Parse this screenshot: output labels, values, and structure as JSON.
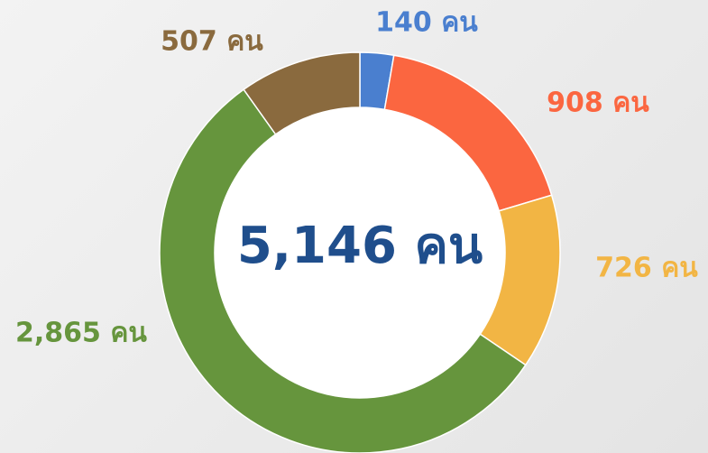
{
  "chart_data": {
    "type": "donut",
    "categories": [
      null,
      null,
      null,
      null,
      null
    ],
    "values": [
      140,
      908,
      726,
      2865,
      507
    ],
    "value_labels": [
      "140 คน",
      "908 คน",
      "726 คน",
      "2,865 คน",
      "507 คน"
    ],
    "colors": [
      "#4a7fcf",
      "#fb6640",
      "#f2b544",
      "#66953d",
      "#8a6a3e"
    ],
    "center_label": "5,146 คน"
  }
}
